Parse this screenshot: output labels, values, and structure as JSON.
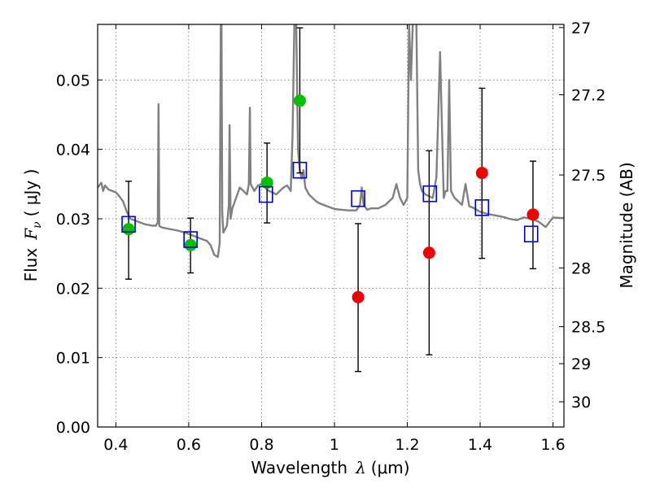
{
  "chart_data": {
    "type": "scatter",
    "xlabel_prefix": "Wavelength",
    "xlabel_lambda": "λ",
    "xlabel_unit": "(μm)",
    "ylabel_prefix": "Flux",
    "ylabel_var": "F",
    "ylabel_sub": "ν",
    "ylabel_unit": "( μJy )",
    "y2label": "Magnitude (AB)",
    "xlim": [
      0.35,
      1.63
    ],
    "ylim": [
      0.0,
      0.058
    ],
    "grid": true,
    "x_ticks": [
      0.4,
      0.6,
      0.8,
      1.0,
      1.2,
      1.4,
      1.6
    ],
    "x_tick_labels": [
      "0.4",
      "0.6",
      "0.8",
      "1",
      "1.2",
      "1.4",
      "1.6"
    ],
    "y_ticks": [
      0.0,
      0.01,
      0.02,
      0.03,
      0.04,
      0.05
    ],
    "y_tick_labels": [
      "0.00",
      "0.01",
      "0.02",
      "0.03",
      "0.04",
      "0.05"
    ],
    "y2_ticks": [
      27,
      27.2,
      27.5,
      28,
      28.5,
      29,
      30
    ],
    "y2_tick_labels": [
      "27",
      "27.2",
      "27.5",
      "28",
      "28.5",
      "29",
      "30"
    ],
    "colors": {
      "template": "#808080",
      "model": "#0000cc",
      "detected": "#00c000",
      "upper": "#ee0000",
      "errorbar": "#000000"
    },
    "template_spectrum": {
      "x": [
        0.35,
        0.36,
        0.365,
        0.37,
        0.38,
        0.39,
        0.4,
        0.41,
        0.42,
        0.43,
        0.44,
        0.45,
        0.46,
        0.47,
        0.48,
        0.49,
        0.5,
        0.51,
        0.515,
        0.517,
        0.519,
        0.521,
        0.525,
        0.53,
        0.55,
        0.57,
        0.59,
        0.61,
        0.63,
        0.65,
        0.66,
        0.67,
        0.68,
        0.685,
        0.688,
        0.69,
        0.692,
        0.695,
        0.7,
        0.705,
        0.71,
        0.712,
        0.715,
        0.72,
        0.73,
        0.74,
        0.75,
        0.76,
        0.765,
        0.768,
        0.77,
        0.775,
        0.78,
        0.79,
        0.8,
        0.81,
        0.82,
        0.83,
        0.84,
        0.85,
        0.86,
        0.87,
        0.88,
        0.885,
        0.89,
        0.895,
        0.9,
        0.905,
        0.91,
        0.915,
        0.92,
        0.93,
        0.94,
        0.95,
        0.96,
        0.97,
        0.98,
        0.99,
        1.0,
        1.02,
        1.04,
        1.06,
        1.07,
        1.075,
        1.08,
        1.09,
        1.1,
        1.12,
        1.14,
        1.16,
        1.17,
        1.18,
        1.19,
        1.2,
        1.205,
        1.21,
        1.215,
        1.22,
        1.225,
        1.23,
        1.235,
        1.24,
        1.25,
        1.27,
        1.28,
        1.29,
        1.3,
        1.305,
        1.31,
        1.315,
        1.32,
        1.33,
        1.34,
        1.35,
        1.36,
        1.37,
        1.38,
        1.4,
        1.42,
        1.44,
        1.46,
        1.48,
        1.5,
        1.52,
        1.54,
        1.56,
        1.58,
        1.6,
        1.62,
        1.63
      ],
      "y": [
        0.0345,
        0.0352,
        0.034,
        0.0348,
        0.0342,
        0.034,
        0.0338,
        0.0332,
        0.0325,
        0.031,
        0.03,
        0.0298,
        0.0296,
        0.0294,
        0.0292,
        0.0291,
        0.029,
        0.029,
        0.0295,
        0.0465,
        0.029,
        0.0289,
        0.0288,
        0.0287,
        0.0285,
        0.0283,
        0.028,
        0.0276,
        0.0272,
        0.0268,
        0.0262,
        0.0248,
        0.0245,
        0.0265,
        0.058,
        0.058,
        0.031,
        0.028,
        0.0285,
        0.029,
        0.032,
        0.0435,
        0.03,
        0.0315,
        0.033,
        0.0345,
        0.034,
        0.0335,
        0.035,
        0.046,
        0.035,
        0.0345,
        0.034,
        0.0348,
        0.035,
        0.0345,
        0.034,
        0.0338,
        0.0335,
        0.034,
        0.0345,
        0.0348,
        0.034,
        0.042,
        0.058,
        0.058,
        0.04,
        0.037,
        0.0358,
        0.037,
        0.0345,
        0.0335,
        0.033,
        0.0325,
        0.0322,
        0.032,
        0.0318,
        0.0316,
        0.0314,
        0.0313,
        0.0312,
        0.0312,
        0.032,
        0.0345,
        0.032,
        0.0313,
        0.0315,
        0.0315,
        0.032,
        0.033,
        0.035,
        0.033,
        0.032,
        0.033,
        0.058,
        0.05,
        0.058,
        0.06,
        0.058,
        0.037,
        0.035,
        0.034,
        0.0335,
        0.033,
        0.036,
        0.054,
        0.033,
        0.034,
        0.034,
        0.05,
        0.034,
        0.033,
        0.0325,
        0.032,
        0.035,
        0.0318,
        0.0316,
        0.031,
        0.0307,
        0.0305,
        0.0303,
        0.03,
        0.0298,
        0.0302,
        0.03,
        0.0296,
        0.0288,
        0.0302,
        0.0301,
        0.0301
      ]
    },
    "model_points": {
      "x": [
        0.435,
        0.605,
        0.812,
        0.905,
        1.065,
        1.262,
        1.405,
        1.54
      ],
      "y": [
        0.0292,
        0.027,
        0.0335,
        0.037,
        0.0329,
        0.0336,
        0.0316,
        0.0278
      ]
    },
    "detected_points": {
      "x": [
        0.435,
        0.605,
        0.815,
        0.905
      ],
      "y": [
        0.0285,
        0.0262,
        0.0352,
        0.047
      ],
      "err_low": [
        0.0213,
        0.0222,
        0.0294,
        0.0366
      ],
      "err_high": [
        0.0354,
        0.0301,
        0.0409,
        0.0575
      ]
    },
    "upper_points": {
      "x": [
        1.065,
        1.26,
        1.405,
        1.545
      ],
      "y": [
        0.0187,
        0.0251,
        0.0366,
        0.0306
      ],
      "err_low": [
        0.008,
        0.0104,
        0.0243,
        0.0228
      ],
      "err_high": [
        0.0293,
        0.0398,
        0.0488,
        0.0383
      ]
    }
  }
}
